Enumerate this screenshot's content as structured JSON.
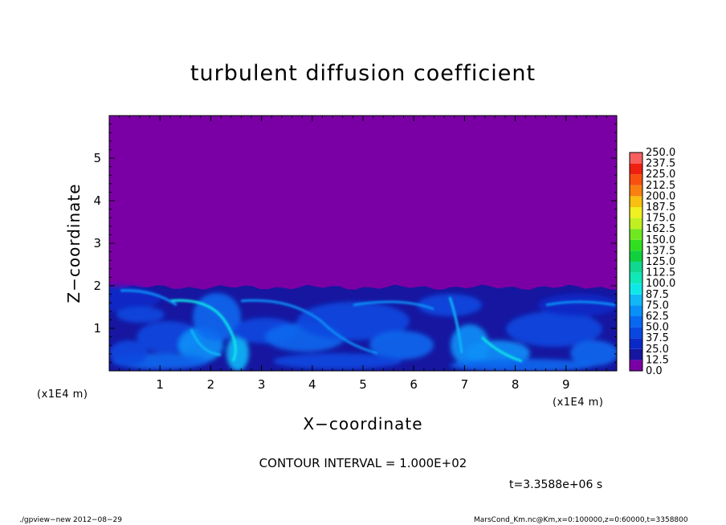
{
  "chart_data": {
    "type": "heatmap",
    "title": "turbulent diffusion coefficient",
    "xlabel": "X−coordinate",
    "ylabel": "Z−coordinate",
    "x_unit": "(x1E4 m)",
    "z_unit": "(x1E4 m)",
    "xlim": [
      0,
      10
    ],
    "ylim": [
      0,
      6
    ],
    "x_ticks": [
      "1",
      "2",
      "3",
      "4",
      "5",
      "6",
      "7",
      "8",
      "9"
    ],
    "y_ticks": [
      "1",
      "2",
      "3",
      "4",
      "5"
    ],
    "turbulent_layer_top": 2.0,
    "colorbar": {
      "levels": [
        "0.0",
        "12.5",
        "25.0",
        "37.5",
        "50.0",
        "62.5",
        "75.0",
        "87.5",
        "100.0",
        "112.5",
        "125.0",
        "137.5",
        "150.0",
        "162.5",
        "175.0",
        "187.5",
        "200.0",
        "212.5",
        "225.0",
        "237.5",
        "250.0"
      ],
      "colors": [
        "#7a00a6",
        "#1616a0",
        "#0a2ac8",
        "#0848e0",
        "#0868f0",
        "#0890f8",
        "#10b8f8",
        "#10e8e8",
        "#10e8b8",
        "#10d890",
        "#10d040",
        "#30e020",
        "#70e820",
        "#c0f020",
        "#f0f020",
        "#f8c010",
        "#f88010",
        "#f85010",
        "#f02010",
        "#f86060"
      ]
    },
    "contour_interval": "CONTOUR INTERVAL = 1.000E+02",
    "time_label": "t=3.3588e+06 s"
  },
  "footer": {
    "left": "./gpview−new   2012−08−29",
    "right": "MarsCond_Km.nc@Km,x=0:100000,z=0:60000,t=3358800"
  }
}
